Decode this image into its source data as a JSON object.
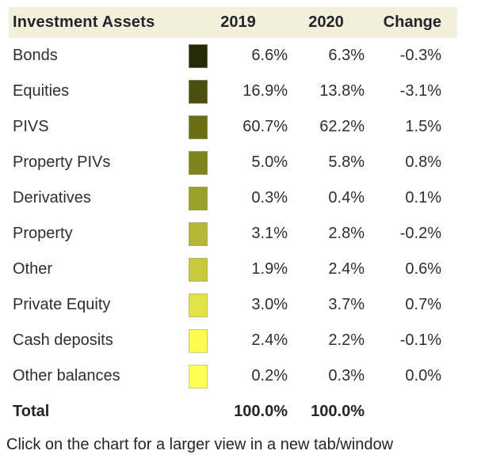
{
  "table": {
    "header": {
      "label": "Investment Assets",
      "col_2019": "2019",
      "col_2020": "2020",
      "col_change": "Change"
    },
    "rows": [
      {
        "label": "Bonds",
        "swatch_color": "#262b06",
        "y2019": "6.6%",
        "y2020": "6.3%",
        "change": "-0.3%"
      },
      {
        "label": "Equities",
        "swatch_color": "#4c500f",
        "y2019": "16.9%",
        "y2020": "13.8%",
        "change": "-3.1%"
      },
      {
        "label": "PIVS",
        "swatch_color": "#6a6f15",
        "y2019": "60.7%",
        "y2020": "62.2%",
        "change": "1.5%"
      },
      {
        "label": "Property PIVs",
        "swatch_color": "#7f841e",
        "y2019": "5.0%",
        "y2020": "5.8%",
        "change": "0.8%"
      },
      {
        "label": "Derivatives",
        "swatch_color": "#9aa02a",
        "y2019": "0.3%",
        "y2020": "0.4%",
        "change": "0.1%"
      },
      {
        "label": "Property",
        "swatch_color": "#b4b834",
        "y2019": "3.1%",
        "y2020": "2.8%",
        "change": "-0.2%"
      },
      {
        "label": "Other",
        "swatch_color": "#c6cb3b",
        "y2019": "1.9%",
        "y2020": "2.4%",
        "change": "0.6%"
      },
      {
        "label": "Private Equity",
        "swatch_color": "#e4e346",
        "y2019": "3.0%",
        "y2020": "3.7%",
        "change": "0.7%"
      },
      {
        "label": "Cash deposits",
        "swatch_color": "#fdfb4e",
        "y2019": "2.4%",
        "y2020": "2.2%",
        "change": "-0.1%"
      },
      {
        "label": "Other balances",
        "swatch_color": "#ffff55",
        "y2019": "0.2%",
        "y2020": "0.3%",
        "change": "0.0%"
      }
    ],
    "total": {
      "label": "Total",
      "y2019": "100.0%",
      "y2020": "100.0%",
      "change": ""
    }
  },
  "footer": {
    "caption": "Click on the chart for a larger view in a new tab/window"
  },
  "colors": {
    "header_bg": "#f2efdb",
    "header_text": "#22252b",
    "body_text": "#2b2e35"
  },
  "chart_data": {
    "type": "table",
    "title": "Investment Assets",
    "categories": [
      "Bonds",
      "Equities",
      "PIVS",
      "Property PIVs",
      "Derivatives",
      "Property",
      "Other",
      "Private Equity",
      "Cash deposits",
      "Other balances"
    ],
    "series": [
      {
        "name": "2019",
        "values": [
          6.6,
          16.9,
          60.7,
          5.0,
          0.3,
          3.1,
          1.9,
          3.0,
          2.4,
          0.2
        ]
      },
      {
        "name": "2020",
        "values": [
          6.3,
          13.8,
          62.2,
          5.8,
          0.4,
          2.8,
          2.4,
          3.7,
          2.2,
          0.3
        ]
      },
      {
        "name": "Change",
        "values": [
          -0.3,
          -3.1,
          1.5,
          0.8,
          0.1,
          -0.2,
          0.6,
          0.7,
          -0.1,
          0.0
        ]
      }
    ],
    "totals": {
      "2019": 100.0,
      "2020": 100.0
    },
    "swatch_colors": [
      "#262b06",
      "#4c500f",
      "#6a6f15",
      "#7f841e",
      "#9aa02a",
      "#b4b834",
      "#c6cb3b",
      "#e4e346",
      "#fdfb4e",
      "#ffff55"
    ],
    "legend_position": "inline-swatch-column",
    "units": "%"
  }
}
